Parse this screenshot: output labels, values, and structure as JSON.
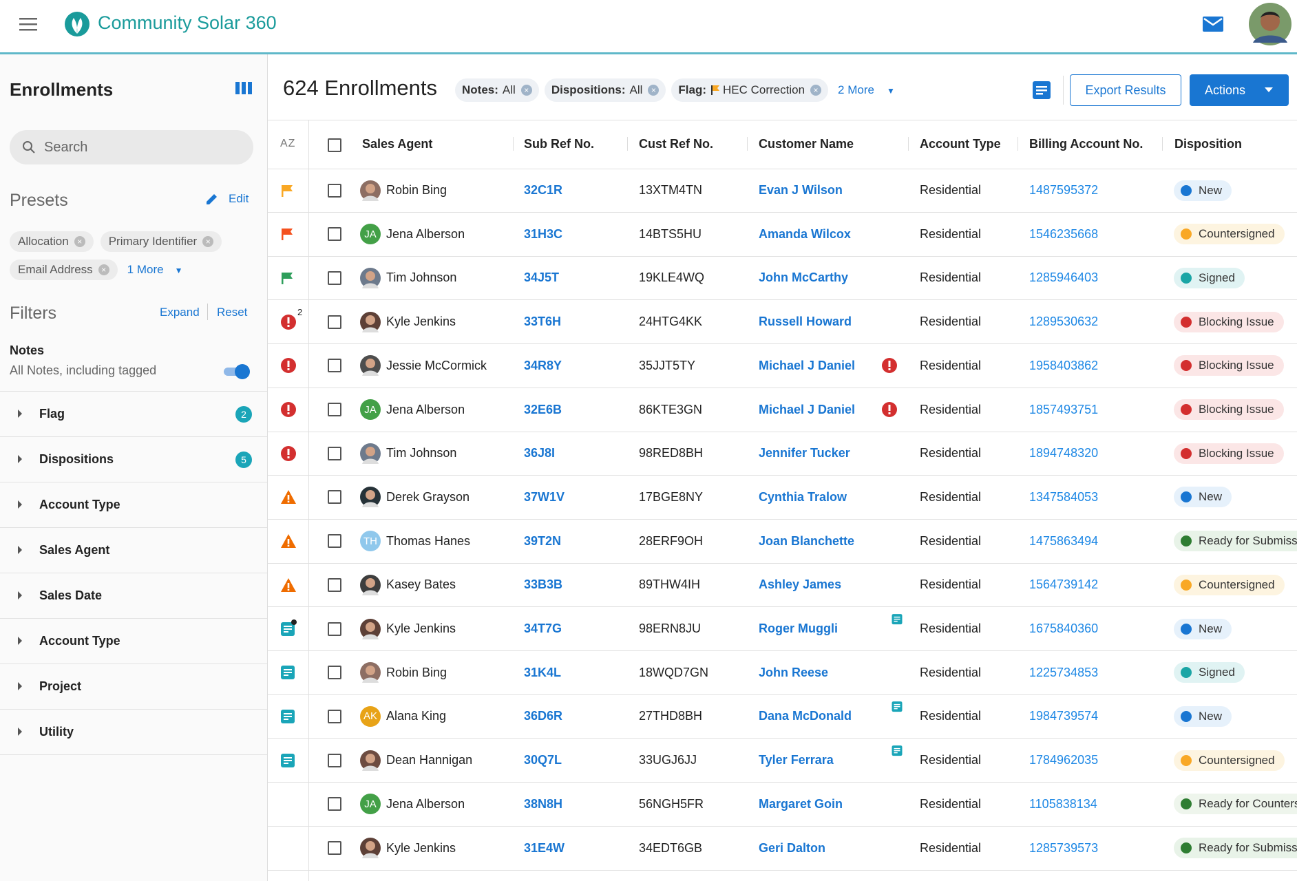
{
  "header": {
    "app_name": "Community Solar 360"
  },
  "sidebar": {
    "title": "Enrollments",
    "search_placeholder": "Search",
    "presets_title": "Presets",
    "edit": "Edit",
    "presets": [
      "Allocation",
      "Primary Identifier",
      "Email Address"
    ],
    "presets_more": "1 More",
    "filters_title": "Filters",
    "expand": "Expand",
    "reset": "Reset",
    "notes_label": "Notes",
    "notes_value": "All Notes, including tagged",
    "filters": [
      {
        "label": "Flag",
        "count": 2
      },
      {
        "label": "Dispositions",
        "count": 5
      },
      {
        "label": "Account Type"
      },
      {
        "label": "Sales Agent"
      },
      {
        "label": "Sales Date"
      },
      {
        "label": "Account Type"
      },
      {
        "label": "Project"
      },
      {
        "label": "Utility"
      }
    ]
  },
  "toolbar": {
    "count_title": "624 Enrollments",
    "chips": [
      {
        "key": "Notes:",
        "value": "All"
      },
      {
        "key": "Dispositions:",
        "value": "All"
      },
      {
        "key": "Flag:",
        "value": "HEC Correction"
      }
    ],
    "more": "2 More",
    "export": "Export Results",
    "actions": "Actions"
  },
  "table": {
    "sort_label": "AZ",
    "columns": [
      "Sales Agent",
      "Sub Ref No.",
      "Cust Ref No.",
      "Customer Name",
      "Account Type",
      "Billing Account No.",
      "Disposition"
    ],
    "rows": [
      {
        "indicator": {
          "icon": "flag",
          "color": "#f9a825"
        },
        "agent": "Robin Bing",
        "avatar_color": "#8d6e63",
        "sub_ref": "32C1R",
        "cust_ref": "13XTM4TN",
        "customer": "Evan J Wilson",
        "account_type": "Residential",
        "billing": "1487595372",
        "disposition": {
          "label": "New",
          "color": "#1976d2",
          "bg": "#e6f1fb"
        }
      },
      {
        "indicator": {
          "icon": "flag",
          "color": "#f4511e"
        },
        "agent": "Jena Alberson",
        "initials": "JA",
        "avatar_color": "#43a047",
        "sub_ref": "31H3C",
        "cust_ref": "14BTS5HU",
        "customer": "Amanda Wilcox",
        "account_type": "Residential",
        "billing": "1546235668",
        "disposition": {
          "label": "Countersigned",
          "color": "#f9a825",
          "bg": "#fdf4e0"
        }
      },
      {
        "indicator": {
          "icon": "flag",
          "color": "#2e9e5b"
        },
        "agent": "Tim Johnson",
        "avatar_color": "#6d7a8c",
        "sub_ref": "34J5T",
        "cust_ref": "19KLE4WQ",
        "customer": "John McCarthy",
        "account_type": "Residential",
        "billing": "1285946403",
        "disposition": {
          "label": "Signed",
          "color": "#1aa5a5",
          "bg": "#e0f3f3"
        }
      },
      {
        "indicator": {
          "icon": "error",
          "color": "#d32f2f",
          "count": "2"
        },
        "agent": "Kyle Jenkins",
        "avatar_color": "#5d4037",
        "sub_ref": "33T6H",
        "cust_ref": "24HTG4KK",
        "customer": "Russell Howard",
        "account_type": "Residential",
        "billing": "1289530632",
        "disposition": {
          "label": "Blocking Issue",
          "color": "#d32f2f",
          "bg": "#fbe6e6"
        }
      },
      {
        "indicator": {
          "icon": "error",
          "color": "#d32f2f"
        },
        "agent": "Jessie McCormick",
        "avatar_color": "#4e4e4e",
        "sub_ref": "34R8Y",
        "cust_ref": "35JJT5TY",
        "customer": "Michael J Daniel",
        "customer_icon": {
          "icon": "error",
          "color": "#d32f2f"
        },
        "account_type": "Residential",
        "billing": "1958403862",
        "disposition": {
          "label": "Blocking Issue",
          "color": "#d32f2f",
          "bg": "#fbe6e6"
        }
      },
      {
        "indicator": {
          "icon": "error",
          "color": "#d32f2f"
        },
        "agent": "Jena Alberson",
        "initials": "JA",
        "avatar_color": "#43a047",
        "sub_ref": "32E6B",
        "cust_ref": "86KTE3GN",
        "customer": "Michael J Daniel",
        "customer_icon": {
          "icon": "error",
          "color": "#d32f2f"
        },
        "account_type": "Residential",
        "billing": "1857493751",
        "disposition": {
          "label": "Blocking Issue",
          "color": "#d32f2f",
          "bg": "#fbe6e6"
        }
      },
      {
        "indicator": {
          "icon": "error",
          "color": "#d32f2f"
        },
        "agent": "Tim Johnson",
        "avatar_color": "#6d7a8c",
        "sub_ref": "36J8I",
        "cust_ref": "98RED8BH",
        "customer": "Jennifer Tucker",
        "account_type": "Residential",
        "billing": "1894748320",
        "disposition": {
          "label": "Blocking Issue",
          "color": "#d32f2f",
          "bg": "#fbe6e6"
        }
      },
      {
        "indicator": {
          "icon": "warning",
          "color": "#ef6c00"
        },
        "agent": "Derek Grayson",
        "avatar_color": "#263238",
        "sub_ref": "37W1V",
        "cust_ref": "17BGE8NY",
        "customer": "Cynthia Tralow",
        "account_type": "Residential",
        "billing": "1347584053",
        "disposition": {
          "label": "New",
          "color": "#1976d2",
          "bg": "#e6f1fb"
        }
      },
      {
        "indicator": {
          "icon": "warning",
          "color": "#ef6c00"
        },
        "agent": "Thomas Hanes",
        "initials": "TH",
        "avatar_color": "#90c8ec",
        "sub_ref": "39T2N",
        "cust_ref": "28ERF9OH",
        "customer": "Joan Blanchette",
        "account_type": "Residential",
        "billing": "1475863494",
        "disposition": {
          "label": "Ready for Submission",
          "color": "#2e7d32",
          "bg": "#e8f3e8"
        }
      },
      {
        "indicator": {
          "icon": "warning",
          "color": "#ef6c00"
        },
        "agent": "Kasey Bates",
        "avatar_color": "#3e3e3e",
        "sub_ref": "33B3B",
        "cust_ref": "89THW4IH",
        "customer": "Ashley James",
        "account_type": "Residential",
        "billing": "1564739142",
        "disposition": {
          "label": "Countersigned",
          "color": "#f9a825",
          "bg": "#fdf4e0"
        }
      },
      {
        "indicator": {
          "icon": "note",
          "color": "#1aa5b8",
          "dot": true
        },
        "agent": "Kyle Jenkins",
        "avatar_color": "#5d4037",
        "sub_ref": "34T7G",
        "cust_ref": "98ERN8JU",
        "customer": "Roger Muggli",
        "customer_icon": {
          "icon": "note",
          "color": "#1aa5b8"
        },
        "account_type": "Residential",
        "billing": "1675840360",
        "disposition": {
          "label": "New",
          "color": "#1976d2",
          "bg": "#e6f1fb"
        }
      },
      {
        "indicator": {
          "icon": "note",
          "color": "#1aa5b8"
        },
        "agent": "Robin Bing",
        "avatar_color": "#8d6e63",
        "sub_ref": "31K4L",
        "cust_ref": "18WQD7GN",
        "customer": "John Reese",
        "account_type": "Residential",
        "billing": "1225734853",
        "disposition": {
          "label": "Signed",
          "color": "#1aa5a5",
          "bg": "#e0f3f3"
        }
      },
      {
        "indicator": {
          "icon": "note",
          "color": "#1aa5b8"
        },
        "agent": "Alana King",
        "initials": "AK",
        "avatar_color": "#e8a317",
        "sub_ref": "36D6R",
        "cust_ref": "27THD8BH",
        "customer": "Dana McDonald",
        "customer_icon": {
          "icon": "note",
          "color": "#1aa5b8"
        },
        "account_type": "Residential",
        "billing": "1984739574",
        "disposition": {
          "label": "New",
          "color": "#1976d2",
          "bg": "#e6f1fb"
        }
      },
      {
        "indicator": {
          "icon": "note",
          "color": "#1aa5b8"
        },
        "agent": "Dean Hannigan",
        "avatar_color": "#6d4c41",
        "sub_ref": "30Q7L",
        "cust_ref": "33UGJ6JJ",
        "customer": "Tyler Ferrara",
        "customer_icon": {
          "icon": "note",
          "color": "#1aa5b8"
        },
        "account_type": "Residential",
        "billing": "1784962035",
        "disposition": {
          "label": "Countersigned",
          "color": "#f9a825",
          "bg": "#fdf4e0"
        }
      },
      {
        "agent": "Jena Alberson",
        "initials": "JA",
        "avatar_color": "#43a047",
        "sub_ref": "38N8H",
        "cust_ref": "56NGH5FR",
        "customer": "Margaret Goin",
        "account_type": "Residential",
        "billing": "1105838134",
        "disposition": {
          "label": "Ready for Countersignature",
          "color": "#2e7d32",
          "bg": "#eef5ec"
        }
      },
      {
        "agent": "Kyle Jenkins",
        "avatar_color": "#5d4037",
        "sub_ref": "31E4W",
        "cust_ref": "34EDT6GB",
        "customer": "Geri Dalton",
        "account_type": "Residential",
        "billing": "1285739573",
        "disposition": {
          "label": "Ready for Submission",
          "color": "#2e7d32",
          "bg": "#e8f3e8"
        }
      }
    ]
  }
}
